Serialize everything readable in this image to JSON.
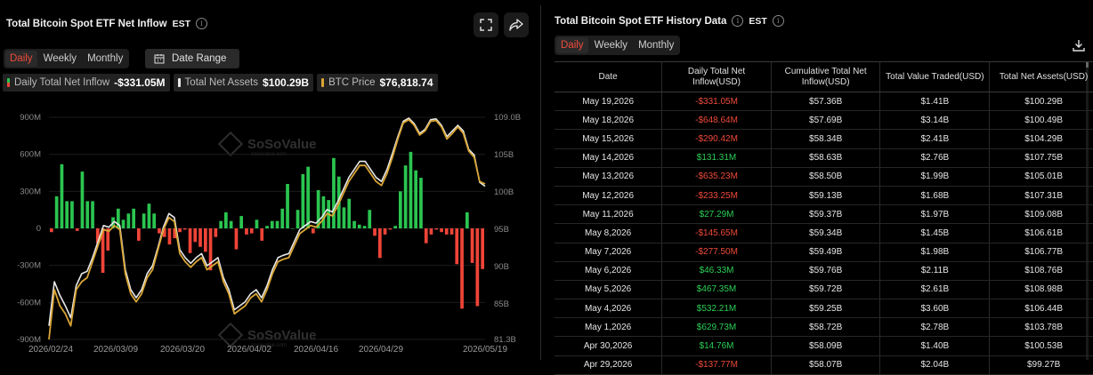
{
  "left": {
    "title": "Total Bitcoin Spot ETF Net Inflow",
    "timezone": "EST",
    "tabs": [
      "Daily",
      "Weekly",
      "Monthly"
    ],
    "date_range_label": "Date Range",
    "legend": [
      {
        "label": "Daily Total Net Inflow",
        "value": "-$331.05M"
      },
      {
        "label": "Total Net Assets",
        "value": "$100.29B"
      },
      {
        "label": "BTC Price",
        "value": "$76,818.74"
      }
    ],
    "watermark": "SoSoValue",
    "watermark_sub": "sosovalue.com"
  },
  "chart_data": {
    "type": "bar",
    "y_left_ticks": [
      "900M",
      "600M",
      "300M",
      "0",
      "-300M",
      "-600M",
      "-900M"
    ],
    "y_left_range": [
      -900,
      900
    ],
    "y_right_ticks": [
      "109.0B",
      "105B",
      "100B",
      "95B",
      "90B",
      "85B",
      "81.3B"
    ],
    "x_ticks": [
      "2026/02/24",
      "2026/03/09",
      "2026/03/20",
      "2026/04/02",
      "2026/04/16",
      "2026/04/29",
      "2026/05/19"
    ],
    "series": [
      {
        "name": "Daily Total Net Inflow",
        "values": [
          -30,
          260,
          520,
          220,
          220,
          -20,
          460,
          220,
          220,
          -120,
          -360,
          -180,
          90,
          160,
          70,
          120,
          160,
          -100,
          120,
          200,
          120,
          -40,
          -70,
          -130,
          -80,
          -30,
          -10,
          -200,
          -110,
          -150,
          -190,
          -340,
          -70,
          60,
          130,
          60,
          -170,
          100,
          -50,
          -40,
          70,
          -100,
          20,
          60,
          60,
          160,
          360,
          0,
          150,
          440,
          500,
          -40,
          310,
          260,
          230,
          570,
          420,
          170,
          240,
          60,
          30,
          20,
          150,
          -60,
          -240,
          -50,
          -10,
          20,
          300,
          510,
          620,
          470,
          410,
          -120,
          -50,
          -10,
          -30,
          -50,
          -50,
          -290,
          -650,
          130,
          -280,
          -630,
          -330
        ]
      },
      {
        "name": "Total Net Assets",
        "values": [
          83.0,
          88.5,
          86.8,
          85.5,
          84.0,
          88.0,
          89.5,
          89.8,
          91.5,
          93.5,
          95.5,
          95.3,
          96.0,
          95.5,
          90.0,
          87.5,
          86.5,
          87.5,
          89.5,
          90.5,
          92.8,
          95.3,
          97.0,
          96.5,
          92.5,
          91.5,
          90.8,
          91.5,
          92.0,
          90.5,
          91.0,
          91.5,
          89.0,
          87.5,
          85.0,
          85.5,
          86.0,
          87.0,
          87.5,
          86.5,
          88.0,
          90.0,
          91.5,
          91.8,
          92.0,
          93.5,
          95.0,
          95.5,
          96.0,
          95.8,
          96.5,
          97.5,
          97.2,
          98.5,
          100.0,
          101.5,
          102.5,
          103.5,
          103.5,
          102.5,
          101.5,
          101.0,
          102.5,
          104.5,
          106.6,
          108.5,
          108.9,
          108.2,
          107.0,
          107.5,
          108.7,
          108.8,
          108.0,
          106.6,
          107.3,
          108.0,
          107.3,
          105.0,
          104.3,
          100.9,
          100.4
        ]
      },
      {
        "name": "BTC Price",
        "values": [
          81.3,
          87.5,
          85.5,
          84.5,
          83.0,
          87.5,
          88.5,
          89.0,
          91.0,
          93.0,
          95.0,
          94.8,
          95.5,
          95.0,
          89.5,
          87.0,
          86.0,
          87.0,
          89.0,
          90.0,
          92.5,
          95.0,
          96.5,
          96.0,
          92.0,
          91.0,
          90.3,
          91.0,
          91.5,
          90.0,
          90.5,
          91.0,
          88.5,
          87.0,
          84.5,
          85.0,
          85.5,
          86.5,
          87.0,
          86.0,
          87.5,
          89.5,
          91.0,
          91.3,
          91.5,
          93.0,
          94.5,
          95.0,
          95.5,
          95.3,
          96.0,
          97.0,
          96.7,
          98.0,
          99.5,
          101.0,
          102.0,
          103.0,
          103.0,
          102.0,
          101.0,
          100.5,
          102.0,
          104.0,
          106.3,
          108.3,
          108.7,
          108.0,
          106.8,
          107.3,
          108.5,
          108.6,
          107.8,
          106.3,
          107.0,
          107.8,
          107.0,
          104.8,
          104.0,
          101.0,
          100.7
        ]
      }
    ],
    "right_axis_range": [
      81.3,
      109.0
    ],
    "colors": {
      "positive": "#2bc550",
      "negative": "#f04438",
      "assets": "#e8e8e8",
      "btc": "#d9a534"
    }
  },
  "right": {
    "title": "Total Bitcoin Spot ETF History Data",
    "timezone": "EST",
    "tabs": [
      "Daily",
      "Weekly",
      "Monthly"
    ],
    "columns": [
      "Date",
      "Daily Total Net Inflow(USD)",
      "Cumulative Total Net Inflow(USD)",
      "Total Value Traded(USD)",
      "Total Net Assets(USD)"
    ],
    "rows": [
      [
        "May 19,2026",
        "-$331.05M",
        "$57.36B",
        "$1.41B",
        "$100.29B"
      ],
      [
        "May 18,2026",
        "-$648.64M",
        "$57.69B",
        "$3.14B",
        "$100.49B"
      ],
      [
        "May 15,2026",
        "-$290.42M",
        "$58.34B",
        "$2.41B",
        "$104.29B"
      ],
      [
        "May 14,2026",
        "$131.31M",
        "$58.63B",
        "$2.76B",
        "$107.75B"
      ],
      [
        "May 13,2026",
        "-$635.23M",
        "$58.50B",
        "$1.99B",
        "$105.01B"
      ],
      [
        "May 12,2026",
        "-$233.25M",
        "$59.13B",
        "$1.68B",
        "$107.31B"
      ],
      [
        "May 11,2026",
        "$27.29M",
        "$59.37B",
        "$1.97B",
        "$109.08B"
      ],
      [
        "May 8,2026",
        "-$145.65M",
        "$59.34B",
        "$1.45B",
        "$106.61B"
      ],
      [
        "May 7,2026",
        "-$277.50M",
        "$59.49B",
        "$1.98B",
        "$106.77B"
      ],
      [
        "May 6,2026",
        "$46.33M",
        "$59.76B",
        "$2.11B",
        "$108.76B"
      ],
      [
        "May 5,2026",
        "$467.35M",
        "$59.72B",
        "$2.61B",
        "$108.98B"
      ],
      [
        "May 4,2026",
        "$532.21M",
        "$59.25B",
        "$3.60B",
        "$106.44B"
      ],
      [
        "May 1,2026",
        "$629.73M",
        "$58.72B",
        "$2.78B",
        "$103.78B"
      ],
      [
        "Apr 30,2026",
        "$14.76M",
        "$58.09B",
        "$1.40B",
        "$100.53B"
      ],
      [
        "Apr 29,2026",
        "-$137.77M",
        "$58.07B",
        "$2.04B",
        "$99.27B"
      ]
    ]
  }
}
